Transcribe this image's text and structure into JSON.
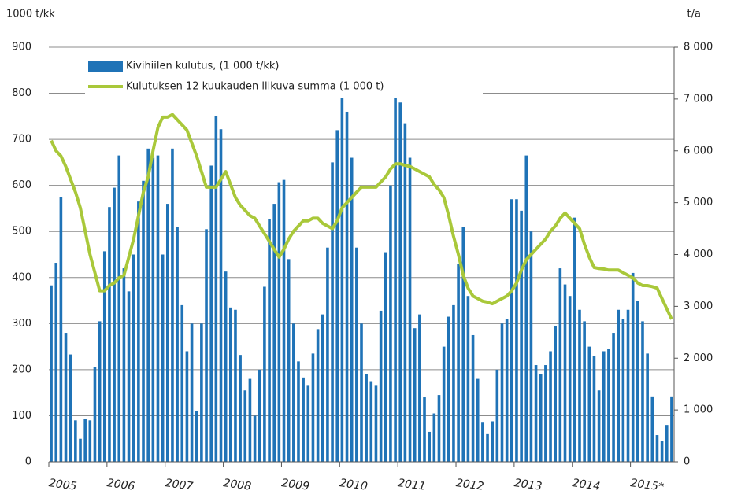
{
  "chart_data": {
    "type": "bar",
    "y_label": "1000 t/kk",
    "y2_label": "t/a",
    "categories": [
      "2005",
      null,
      null,
      null,
      null,
      null,
      null,
      null,
      null,
      null,
      null,
      null,
      "2006",
      null,
      null,
      null,
      null,
      null,
      null,
      null,
      null,
      null,
      null,
      null,
      "2007",
      null,
      null,
      null,
      null,
      null,
      null,
      null,
      null,
      null,
      null,
      null,
      "2008",
      null,
      null,
      null,
      null,
      null,
      null,
      null,
      null,
      null,
      null,
      null,
      "2009",
      null,
      null,
      null,
      null,
      null,
      null,
      null,
      null,
      null,
      null,
      null,
      "2010",
      null,
      null,
      null,
      null,
      null,
      null,
      null,
      null,
      null,
      null,
      null,
      "2011",
      null,
      null,
      null,
      null,
      null,
      null,
      null,
      null,
      null,
      null,
      null,
      "2012",
      null,
      null,
      null,
      null,
      null,
      null,
      null,
      null,
      null,
      null,
      null,
      "2013",
      null,
      null,
      null,
      null,
      null,
      null,
      null,
      null,
      null,
      null,
      null,
      "2014",
      null,
      null,
      null,
      null,
      null,
      null,
      null,
      null,
      null,
      null,
      null,
      "2015*",
      null,
      null,
      null,
      null,
      null,
      null,
      null,
      null
    ],
    "series": [
      {
        "name": "Kivihiilen kulutus, (1 000 t/kk)",
        "color": "#1f73b7",
        "values": [
          383,
          432,
          575,
          280,
          233,
          90,
          50,
          93,
          90,
          205,
          305,
          457,
          553,
          595,
          665,
          420,
          370,
          450,
          565,
          610,
          680,
          660,
          665,
          450,
          560,
          680,
          510,
          340,
          240,
          300,
          110,
          300,
          505,
          643,
          750,
          722,
          413,
          335,
          330,
          232,
          155,
          180,
          100,
          200,
          380,
          527,
          560,
          607,
          612,
          440,
          300,
          218,
          183,
          165,
          235,
          288,
          320,
          465,
          650,
          720,
          790,
          760,
          660,
          465,
          300,
          190,
          175,
          165,
          328,
          455,
          600,
          790,
          780,
          735,
          660,
          290,
          320,
          140,
          65,
          105,
          145,
          250,
          315,
          340,
          430,
          510,
          360,
          275,
          180,
          85,
          60,
          88,
          200,
          300,
          310,
          570,
          570,
          545,
          665,
          500,
          210,
          190,
          210,
          240,
          295,
          420,
          385,
          360,
          530,
          330,
          305,
          250,
          230,
          155,
          240,
          245,
          280,
          330,
          310,
          330,
          410,
          350,
          305,
          235,
          142,
          58,
          45,
          80,
          142
        ]
      },
      {
        "name": "Kulutuksen 12 kuukauden liikuva summa (1 000 t)",
        "color": "#a9c83a",
        "type": "line",
        "axis": "y2",
        "values": [
          6200,
          6000,
          5900,
          5700,
          5450,
          5200,
          4900,
          4450,
          4000,
          3650,
          3300,
          3300,
          3400,
          3450,
          3550,
          3600,
          3950,
          4300,
          4750,
          5200,
          5500,
          6000,
          6450,
          6650,
          6650,
          6700,
          6600,
          6500,
          6400,
          6150,
          5900,
          5600,
          5300,
          5300,
          5300,
          5450,
          5600,
          5350,
          5100,
          4950,
          4850,
          4750,
          4700,
          4550,
          4400,
          4250,
          4100,
          3950,
          4100,
          4300,
          4450,
          4550,
          4650,
          4650,
          4700,
          4700,
          4600,
          4550,
          4500,
          4650,
          4900,
          5000,
          5100,
          5200,
          5300,
          5300,
          5300,
          5300,
          5400,
          5500,
          5650,
          5750,
          5750,
          5720,
          5700,
          5650,
          5600,
          5550,
          5500,
          5350,
          5250,
          5100,
          4750,
          4350,
          4000,
          3600,
          3350,
          3200,
          3150,
          3100,
          3080,
          3050,
          3100,
          3150,
          3200,
          3300,
          3450,
          3700,
          3900,
          4000,
          4100,
          4200,
          4300,
          4450,
          4550,
          4700,
          4800,
          4700,
          4600,
          4500,
          4200,
          3950,
          3750,
          3730,
          3720,
          3700,
          3700,
          3700,
          3650,
          3600,
          3550,
          3450,
          3400,
          3400,
          3380,
          3350,
          3150,
          2950,
          2750
        ]
      }
    ],
    "ylim": [
      0,
      900
    ],
    "yticks": [
      0,
      100,
      200,
      300,
      400,
      500,
      600,
      700,
      800,
      900
    ],
    "y2lim": [
      0,
      8000
    ],
    "y2ticks": [
      0,
      {
        "value": 1000,
        "label": "1 000"
      },
      {
        "value": 2000,
        "label": "2 000"
      },
      {
        "value": 3000,
        "label": "3 000"
      },
      {
        "value": 4000,
        "label": "4 000"
      },
      {
        "value": 5000,
        "label": "5 000"
      },
      {
        "value": 6000,
        "label": "6 000"
      },
      {
        "value": 7000,
        "label": "7 000"
      },
      {
        "value": 8000,
        "label": "8 000"
      }
    ],
    "grid": true
  }
}
